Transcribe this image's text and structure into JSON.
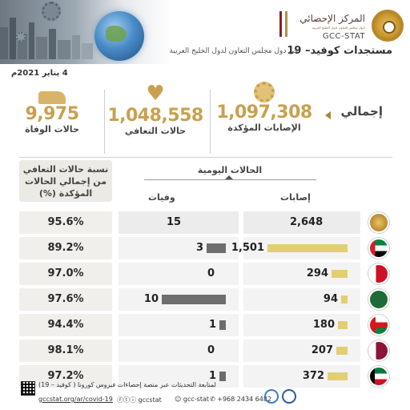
{
  "header": {
    "logo_ar": "المركز الإحصائي",
    "logo_sub": "لدول مجلس التعاون لدول الخليج العربية",
    "logo_en": "GCC-STAT",
    "title": "مستجدات كوفيد– 19",
    "subtitle": "في دول مجلس التعاون لدول الخليج العربية",
    "date": "4 يناير 2021م"
  },
  "totals": {
    "label": "إجمالي",
    "cases_value": "1,097,308",
    "cases_label": "الإصابات المؤكدة",
    "recovered_value": "1,048,558",
    "recovered_label": "حالات التعافي",
    "deaths_value": "9,975",
    "deaths_label": "حالات الوفاة",
    "icons": {
      "cases": "virus-icon",
      "recovered": "heartbeat-icon",
      "deaths": "hospital-bed-icon"
    }
  },
  "table": {
    "daily_header": "الحالات اليومية",
    "cases_header": "إصابات",
    "deaths_header": "وفيات",
    "pct_header_line1": "نسبة حالات التعافي",
    "pct_header_line2": "من إجمالي الحالات",
    "pct_header_line3": "المؤكدة (%)",
    "rows": [
      {
        "flag": "gcc",
        "cases": "2,648",
        "deaths": "15",
        "pct": "95.6%"
      },
      {
        "flag": "uae",
        "cases": "1,501",
        "deaths": "3",
        "pct": "89.2%"
      },
      {
        "flag": "bahrain",
        "cases": "294",
        "deaths": "0",
        "pct": "97.0%"
      },
      {
        "flag": "saudi",
        "cases": "94",
        "deaths": "10",
        "pct": "97.6%"
      },
      {
        "flag": "oman",
        "cases": "180",
        "deaths": "1",
        "pct": "94.4%"
      },
      {
        "flag": "qatar",
        "cases": "207",
        "deaths": "0",
        "pct": "98.1%"
      },
      {
        "flag": "kuwait",
        "cases": "372",
        "deaths": "1",
        "pct": "97.2%"
      }
    ],
    "colors": {
      "cases_bar": "#e2cf72",
      "deaths_bar": "#6d6d6d",
      "accent": "#c8a050"
    }
  },
  "footer": {
    "text": "لمتابعة التحديثات عبر منصة إحصاءات فيروس كورونا ( كوفيد – 19)",
    "url": "gccstat.org/ar/covid-19",
    "social1": "gccstat",
    "social2": "gcc-stat",
    "phone": "+968 2434 6482"
  }
}
